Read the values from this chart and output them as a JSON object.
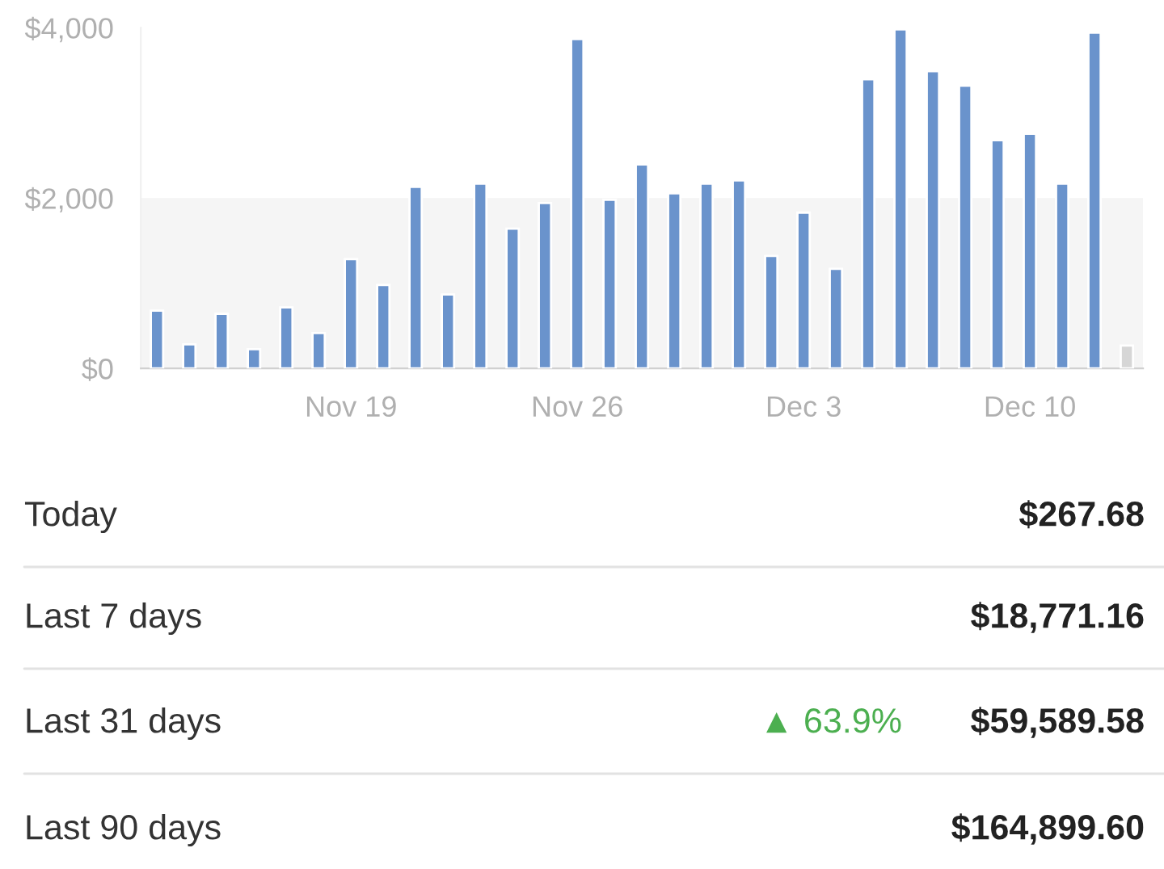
{
  "chart_data": {
    "type": "bar",
    "categories": [
      null,
      null,
      null,
      null,
      null,
      null,
      "Nov 19",
      null,
      null,
      null,
      null,
      null,
      null,
      "Nov 26",
      null,
      null,
      null,
      null,
      null,
      null,
      "Dec 3",
      null,
      null,
      null,
      null,
      null,
      null,
      "Dec 10",
      null,
      null,
      null
    ],
    "values": [
      680,
      283,
      642,
      226,
      717,
      415,
      1283,
      981,
      2132,
      868,
      2170,
      1642,
      1943,
      3868,
      1981,
      2396,
      2057,
      2170,
      2208,
      1321,
      1830,
      1170,
      3396,
      3981,
      3491,
      3321,
      2679,
      2755,
      2170,
      3943,
      268
    ],
    "colors": [
      "#6a93cc",
      "#6a93cc",
      "#6a93cc",
      "#6a93cc",
      "#6a93cc",
      "#6a93cc",
      "#6a93cc",
      "#6a93cc",
      "#6a93cc",
      "#6a93cc",
      "#6a93cc",
      "#6a93cc",
      "#6a93cc",
      "#6a93cc",
      "#6a93cc",
      "#6a93cc",
      "#6a93cc",
      "#6a93cc",
      "#6a93cc",
      "#6a93cc",
      "#6a93cc",
      "#6a93cc",
      "#6a93cc",
      "#6a93cc",
      "#6a93cc",
      "#6a93cc",
      "#6a93cc",
      "#6a93cc",
      "#6a93cc",
      "#6a93cc",
      "#d6d6d6"
    ],
    "ylim": [
      0,
      4000
    ],
    "yticks": [
      {
        "value": 0,
        "label": "$0"
      },
      {
        "value": 2000,
        "label": "$2,000"
      },
      {
        "value": 4000,
        "label": "$4,000"
      }
    ],
    "bands": [
      {
        "axis": "y",
        "from": 0,
        "to": 2000,
        "color": "#f5f5f5"
      }
    ],
    "grid": false,
    "annotations": [
      "Today",
      "$267.68",
      "Last 7 days",
      "$18,771.16",
      "Last 31 days",
      "▲ 63.9%",
      "$59,589.58",
      "Last 90 days",
      "$164,899.60"
    ]
  }
}
